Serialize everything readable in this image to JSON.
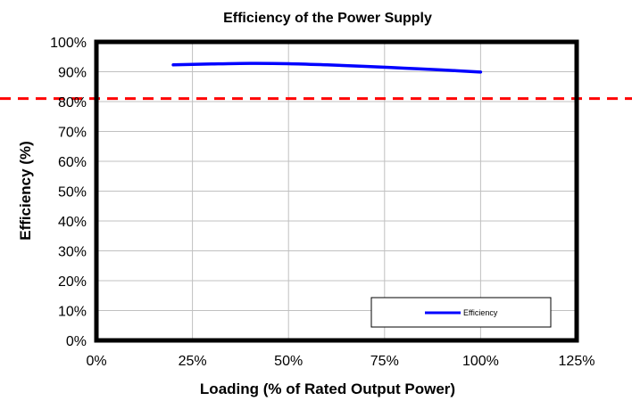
{
  "chart_data": {
    "type": "line",
    "title": "Efficiency of the Power Supply",
    "xlabel": "Loading (% of Rated Output Power)",
    "ylabel": "Efficiency  (%)",
    "xlim": [
      0,
      125
    ],
    "ylim": [
      0,
      100
    ],
    "x_ticks": [
      "0%",
      "25%",
      "50%",
      "75%",
      "100%",
      "125%"
    ],
    "y_ticks": [
      "0%",
      "10%",
      "20%",
      "30%",
      "40%",
      "50%",
      "60%",
      "70%",
      "80%",
      "90%",
      "100%"
    ],
    "grid": true,
    "legend_position": "bottom-right",
    "series": [
      {
        "name": "Efficiency",
        "color": "#0000ff",
        "x": [
          20,
          30,
          40,
          50,
          60,
          70,
          80,
          90,
          100
        ],
        "y": [
          92.3,
          92.6,
          92.8,
          92.7,
          92.3,
          91.8,
          91.2,
          90.6,
          89.9
        ]
      }
    ],
    "reference_line": {
      "y": 81,
      "color": "#ff0000",
      "style": "dashed"
    }
  }
}
